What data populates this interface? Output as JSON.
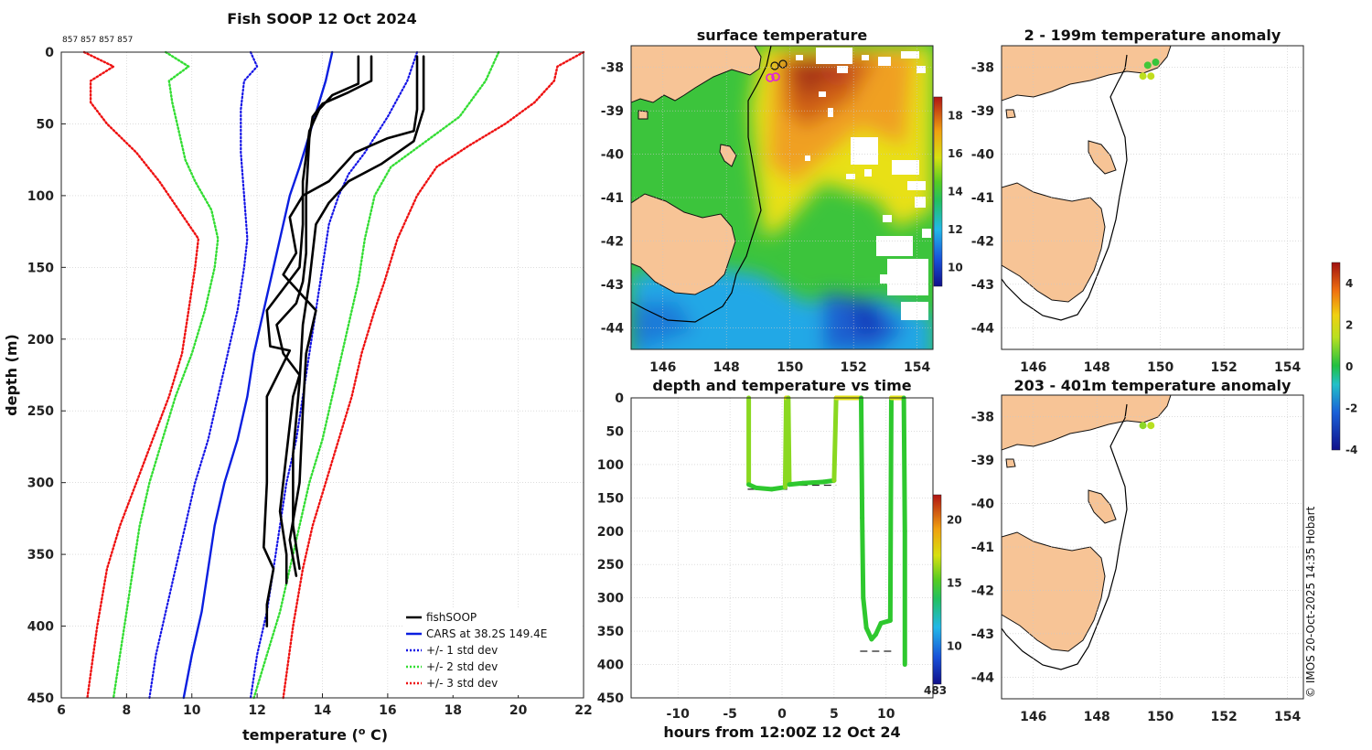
{
  "colors": {
    "fishsoop": "#000000",
    "cars": "#0a1ee0",
    "std1": "#1414e6",
    "std2": "#33dd33",
    "std3": "#ee1111",
    "land": "#f7c496",
    "ocean_warm": "#e87e1a",
    "ocean_mid": "#3cc43c",
    "ocean_cool": "#2aa6e6",
    "grid": "#c8c8c8"
  },
  "chart_data": [
    {
      "id": "profile",
      "type": "line",
      "title": "Fish SOOP 12 Oct 2024",
      "subtitle": "857 857 857 857",
      "xlabel": "temperature (",
      "xlabel_sup": "o",
      "xlabel_tail": " C)",
      "ylabel": "depth (m)",
      "xlim": [
        6,
        22
      ],
      "ylim": [
        450,
        0
      ],
      "xticks": [
        6,
        8,
        10,
        12,
        14,
        16,
        18,
        20,
        22
      ],
      "yticks": [
        0,
        50,
        100,
        150,
        200,
        250,
        300,
        350,
        400,
        450
      ],
      "legend_position": "bottom-right",
      "legend": [
        "fishSOOP",
        "CARS at 38.2S 149.4E",
        "+/- 1 std dev",
        "+/- 2 std dev",
        "+/- 3 std dev"
      ],
      "series": [
        {
          "name": "fishSOOP cast 1",
          "style": "fishsoop",
          "points": [
            [
              15.5,
              3
            ],
            [
              15.5,
              20
            ],
            [
              14.8,
              28
            ],
            [
              14.0,
              36
            ],
            [
              13.7,
              45
            ],
            [
              13.6,
              60
            ],
            [
              13.5,
              100
            ],
            [
              13.5,
              140
            ],
            [
              13.4,
              160
            ],
            [
              13.2,
              175
            ],
            [
              12.6,
              190
            ],
            [
              12.8,
              210
            ],
            [
              13.3,
              225
            ],
            [
              13.1,
              240
            ],
            [
              12.9,
              280
            ],
            [
              12.7,
              320
            ],
            [
              12.9,
              350
            ],
            [
              12.9,
              370
            ]
          ]
        },
        {
          "name": "fishSOOP cast 2",
          "style": "fishsoop",
          "points": [
            [
              15.1,
              3
            ],
            [
              15.1,
              22
            ],
            [
              14.3,
              30
            ],
            [
              13.9,
              40
            ],
            [
              13.6,
              55
            ],
            [
              13.4,
              90
            ],
            [
              13.4,
              120
            ],
            [
              13.3,
              150
            ],
            [
              12.3,
              180
            ],
            [
              12.4,
              205
            ],
            [
              13.0,
              208
            ],
            [
              12.3,
              240
            ],
            [
              12.3,
              300
            ],
            [
              12.2,
              345
            ],
            [
              12.5,
              360
            ],
            [
              12.3,
              385
            ],
            [
              12.3,
              400
            ]
          ]
        },
        {
          "name": "fishSOOP cast 3",
          "style": "fishsoop",
          "points": [
            [
              16.9,
              3
            ],
            [
              16.9,
              40
            ],
            [
              16.8,
              55
            ],
            [
              16.0,
              60
            ],
            [
              15.0,
              70
            ],
            [
              14.2,
              90
            ],
            [
              13.4,
              100
            ],
            [
              13.0,
              115
            ],
            [
              13.2,
              140
            ],
            [
              12.8,
              155
            ],
            [
              13.8,
              180
            ],
            [
              13.5,
              210
            ],
            [
              13.4,
              250
            ],
            [
              13.3,
              300
            ],
            [
              13.0,
              340
            ],
            [
              13.2,
              365
            ]
          ]
        },
        {
          "name": "fishSOOP cast 4",
          "style": "fishsoop",
          "points": [
            [
              17.1,
              3
            ],
            [
              17.1,
              40
            ],
            [
              16.8,
              62
            ],
            [
              15.8,
              78
            ],
            [
              14.8,
              90
            ],
            [
              14.2,
              105
            ],
            [
              13.8,
              120
            ],
            [
              13.6,
              160
            ],
            [
              13.4,
              190
            ],
            [
              13.3,
              230
            ],
            [
              13.1,
              280
            ],
            [
              13.1,
              330
            ],
            [
              13.3,
              360
            ]
          ]
        },
        {
          "name": "CARS at 38.2S 149.4E",
          "style": "cars",
          "points": [
            [
              14.3,
              0
            ],
            [
              14.1,
              20
            ],
            [
              13.7,
              50
            ],
            [
              13.3,
              80
            ],
            [
              13.0,
              100
            ],
            [
              12.7,
              130
            ],
            [
              12.5,
              150
            ],
            [
              12.2,
              180
            ],
            [
              11.9,
              210
            ],
            [
              11.7,
              240
            ],
            [
              11.4,
              270
            ],
            [
              11.0,
              300
            ],
            [
              10.7,
              330
            ],
            [
              10.5,
              360
            ],
            [
              10.3,
              390
            ],
            [
              10.0,
              420
            ],
            [
              9.75,
              450
            ]
          ]
        },
        {
          "name": "+1 std dev",
          "style": "std1",
          "points": [
            [
              16.9,
              0
            ],
            [
              16.6,
              20
            ],
            [
              16.0,
              45
            ],
            [
              15.3,
              70
            ],
            [
              14.8,
              85
            ],
            [
              14.5,
              100
            ],
            [
              14.2,
              120
            ],
            [
              14.0,
              150
            ],
            [
              13.8,
              180
            ],
            [
              13.6,
              210
            ],
            [
              13.4,
              240
            ],
            [
              13.2,
              270
            ],
            [
              12.9,
              300
            ],
            [
              12.7,
              330
            ],
            [
              12.5,
              360
            ],
            [
              12.3,
              390
            ],
            [
              12.0,
              420
            ],
            [
              11.8,
              450
            ]
          ]
        },
        {
          "name": "-1 std dev",
          "style": "std1",
          "points": [
            [
              11.8,
              0
            ],
            [
              12.0,
              10
            ],
            [
              11.6,
              20
            ],
            [
              11.5,
              40
            ],
            [
              11.5,
              70
            ],
            [
              11.6,
              100
            ],
            [
              11.7,
              130
            ],
            [
              11.6,
              150
            ],
            [
              11.4,
              180
            ],
            [
              11.1,
              210
            ],
            [
              10.8,
              240
            ],
            [
              10.5,
              270
            ],
            [
              10.1,
              300
            ],
            [
              9.8,
              330
            ],
            [
              9.5,
              360
            ],
            [
              9.2,
              390
            ],
            [
              8.9,
              420
            ],
            [
              8.7,
              450
            ]
          ]
        },
        {
          "name": "+2 std dev",
          "style": "std2",
          "points": [
            [
              19.4,
              0
            ],
            [
              19.0,
              20
            ],
            [
              18.2,
              45
            ],
            [
              17.0,
              65
            ],
            [
              16.1,
              80
            ],
            [
              15.6,
              100
            ],
            [
              15.3,
              130
            ],
            [
              15.1,
              160
            ],
            [
              14.9,
              180
            ],
            [
              14.6,
              210
            ],
            [
              14.3,
              240
            ],
            [
              14.0,
              270
            ],
            [
              13.6,
              300
            ],
            [
              13.3,
              330
            ],
            [
              13.0,
              360
            ],
            [
              12.7,
              390
            ],
            [
              12.3,
              420
            ],
            [
              11.9,
              450
            ]
          ]
        },
        {
          "name": "-2 std dev",
          "style": "std2",
          "points": [
            [
              9.2,
              0
            ],
            [
              9.9,
              10
            ],
            [
              9.3,
              20
            ],
            [
              9.4,
              35
            ],
            [
              9.6,
              55
            ],
            [
              9.8,
              75
            ],
            [
              10.1,
              90
            ],
            [
              10.6,
              110
            ],
            [
              10.8,
              130
            ],
            [
              10.7,
              150
            ],
            [
              10.4,
              180
            ],
            [
              10.0,
              210
            ],
            [
              9.5,
              240
            ],
            [
              9.1,
              270
            ],
            [
              8.7,
              300
            ],
            [
              8.4,
              330
            ],
            [
              8.2,
              360
            ],
            [
              8.0,
              390
            ],
            [
              7.8,
              420
            ],
            [
              7.6,
              450
            ]
          ]
        },
        {
          "name": "+3 std dev",
          "style": "std3",
          "points": [
            [
              22.0,
              0
            ],
            [
              21.2,
              10
            ],
            [
              21.1,
              20
            ],
            [
              20.5,
              35
            ],
            [
              19.6,
              50
            ],
            [
              18.5,
              65
            ],
            [
              17.5,
              80
            ],
            [
              16.9,
              100
            ],
            [
              16.3,
              130
            ],
            [
              15.9,
              160
            ],
            [
              15.6,
              180
            ],
            [
              15.2,
              210
            ],
            [
              14.9,
              240
            ],
            [
              14.5,
              270
            ],
            [
              14.1,
              300
            ],
            [
              13.7,
              330
            ],
            [
              13.4,
              360
            ],
            [
              13.1,
              400
            ],
            [
              12.8,
              450
            ]
          ]
        },
        {
          "name": "-3 std dev",
          "style": "std3",
          "points": [
            [
              6.7,
              0
            ],
            [
              7.6,
              10
            ],
            [
              6.9,
              20
            ],
            [
              6.9,
              35
            ],
            [
              7.4,
              50
            ],
            [
              8.3,
              70
            ],
            [
              9.0,
              90
            ],
            [
              9.6,
              110
            ],
            [
              10.2,
              130
            ],
            [
              10.1,
              150
            ],
            [
              9.9,
              180
            ],
            [
              9.7,
              210
            ],
            [
              9.3,
              240
            ],
            [
              8.8,
              270
            ],
            [
              8.3,
              300
            ],
            [
              7.8,
              330
            ],
            [
              7.4,
              360
            ],
            [
              7.1,
              400
            ],
            [
              6.8,
              450
            ]
          ]
        }
      ]
    },
    {
      "id": "surface",
      "type": "heatmap",
      "title": "surface temperature",
      "xlim": [
        145,
        154.5
      ],
      "ylim": [
        -44.5,
        -37.5
      ],
      "xticks": [
        146,
        148,
        150,
        152,
        154
      ],
      "yticks": [
        -38,
        -39,
        -40,
        -41,
        -42,
        -43,
        -44
      ],
      "colorbar": {
        "min": 9,
        "max": 19,
        "ticks": [
          10,
          12,
          14,
          16,
          18
        ]
      },
      "markers": [
        [
          149.3,
          -38.2
        ],
        [
          149.6,
          -38.15
        ],
        [
          149.3,
          -37.95
        ],
        [
          149.6,
          -37.92
        ]
      ]
    },
    {
      "id": "timeseries",
      "type": "line",
      "title": "depth and temperature vs time",
      "xlabel": "hours from 12:00Z 12 Oct 24",
      "xlim": [
        -14.5,
        14.5
      ],
      "ylim": [
        450,
        0
      ],
      "xticks": [
        -10,
        -5,
        0,
        5,
        10
      ],
      "yticks": [
        0,
        50,
        100,
        150,
        200,
        250,
        300,
        350,
        400,
        450
      ],
      "colorbar": {
        "min": 7,
        "max": 22,
        "ticks": [
          10,
          15,
          20
        ]
      },
      "corner_label": "483",
      "depth_trace": [
        [
          -3.2,
          0
        ],
        [
          -3.2,
          130
        ],
        [
          -2.5,
          135
        ],
        [
          -1,
          137
        ],
        [
          0.3,
          134
        ],
        [
          0.4,
          0
        ],
        [
          0.6,
          0
        ],
        [
          0.7,
          130
        ],
        [
          2,
          128
        ],
        [
          4,
          126
        ],
        [
          5,
          124
        ],
        [
          5.2,
          0
        ],
        [
          7.6,
          0
        ],
        [
          7.7,
          180
        ],
        [
          7.8,
          300
        ],
        [
          8.1,
          345
        ],
        [
          8.6,
          362
        ],
        [
          9,
          355
        ],
        [
          9.5,
          338
        ],
        [
          10.4,
          334
        ],
        [
          10.5,
          0
        ],
        [
          11.7,
          0
        ],
        [
          11.8,
          200
        ],
        [
          11.8,
          400
        ]
      ],
      "bottom_segments": [
        [
          -3.3,
          137,
          0.5,
          137
        ],
        [
          0.6,
          131,
          5.2,
          131
        ],
        [
          7.5,
          380,
          10.6,
          380
        ]
      ]
    },
    {
      "id": "anom1",
      "type": "scatter",
      "title": "2 - 199m temperature anomaly",
      "xlim": [
        145,
        154.5
      ],
      "ylim": [
        -44.5,
        -37.5
      ],
      "xticks": [
        146,
        148,
        150,
        152,
        154
      ],
      "yticks": [
        -38,
        -39,
        -40,
        -41,
        -42,
        -43,
        -44
      ],
      "points": [
        {
          "lon": 149.45,
          "lat": -38.2,
          "anom": 1.5
        },
        {
          "lon": 149.7,
          "lat": -38.2,
          "anom": 1.6
        },
        {
          "lon": 149.6,
          "lat": -37.95,
          "anom": 0.3
        },
        {
          "lon": 149.85,
          "lat": -37.88,
          "anom": 0.2
        }
      ]
    },
    {
      "id": "anom2",
      "type": "scatter",
      "title": "203 - 401m temperature anomaly",
      "xlim": [
        145,
        154.5
      ],
      "ylim": [
        -44.5,
        -37.5
      ],
      "xticks": [
        146,
        148,
        150,
        152,
        154
      ],
      "yticks": [
        -38,
        -39,
        -40,
        -41,
        -42,
        -43,
        -44
      ],
      "colorbar": {
        "min": -4,
        "max": 5,
        "ticks": [
          -4,
          -2,
          0,
          2,
          4
        ]
      },
      "points": [
        {
          "lon": 149.45,
          "lat": -38.2,
          "anom": 1.0
        },
        {
          "lon": 149.7,
          "lat": -38.2,
          "anom": 1.4
        }
      ]
    }
  ],
  "credit": "© IMOS 20-Oct-2025 14:35 Hobart"
}
